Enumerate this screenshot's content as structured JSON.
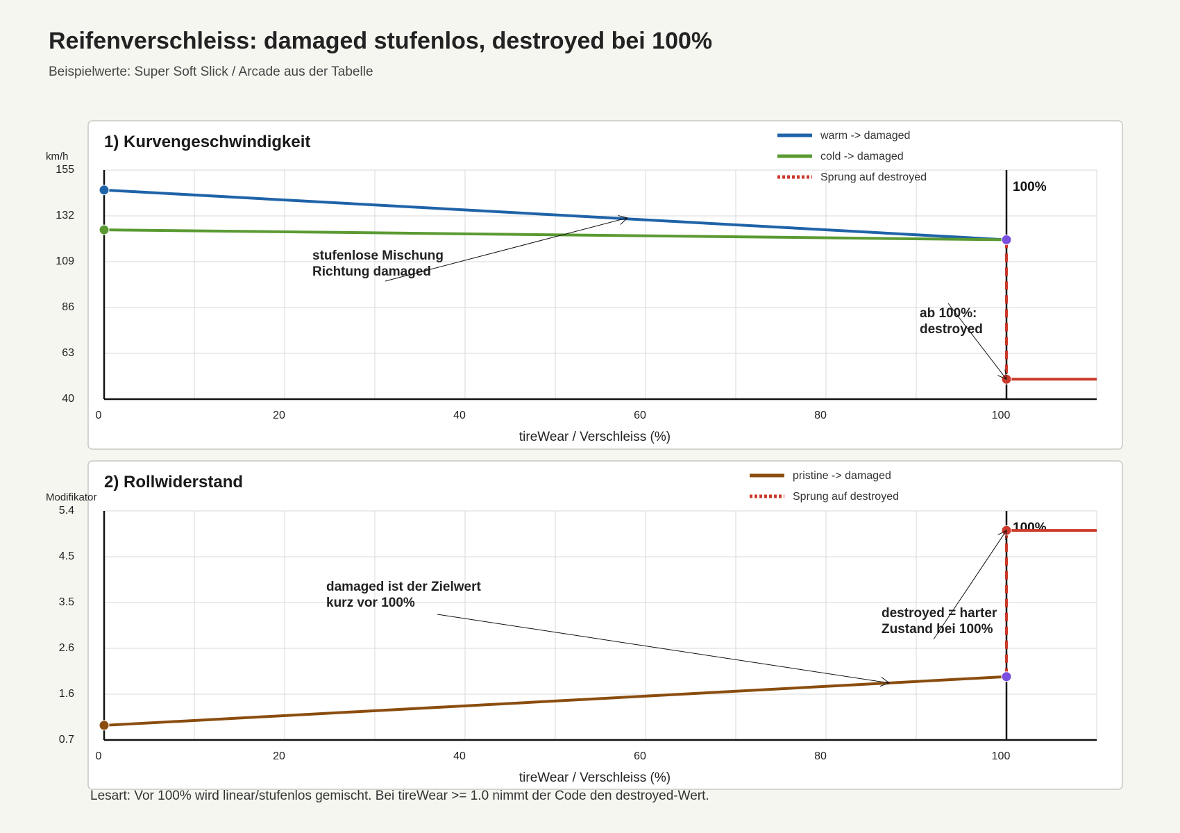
{
  "title": "Reifenverschleiss: damaged stufenlos, destroyed bei 100%",
  "subtitle": "Beispielwerte: Super Soft Slick / Arcade aus der Tabelle",
  "footer": "Lesart: Vor 100% wird linear/stufenlos gemischt. Bei tireWear >= 1.0 nimmt der Code den destroyed-Wert.",
  "colors": {
    "warm": "#1f63a8",
    "cold": "#5a9a32",
    "pristine": "#8a4d0f",
    "destroyed": "#cc3a2b",
    "damaged_point": "#7a4fe0",
    "grid": "#d9d9d9",
    "axis": "#111111"
  },
  "chart_data": [
    {
      "type": "line",
      "title": "1) Kurvengeschwindigkeit",
      "xlabel": "tireWear / Verschleiss (%)",
      "ylabel": "km/h",
      "xlim": [
        0,
        110
      ],
      "ylim": [
        40,
        155
      ],
      "xticks": [
        "0",
        "20",
        "40",
        "60",
        "80",
        "100"
      ],
      "xtick_values": [
        0,
        20,
        40,
        60,
        80,
        100
      ],
      "yticks": [
        "40",
        "63",
        "86",
        "109",
        "132",
        "155"
      ],
      "ytick_values": [
        40,
        63,
        86,
        109,
        132,
        155
      ],
      "series": [
        {
          "name": "warm -> damaged",
          "style": "solid",
          "color": "#1f63a8",
          "x": [
            0,
            100
          ],
          "y": [
            145,
            120
          ]
        },
        {
          "name": "cold -> damaged",
          "style": "solid",
          "color": "#5a9a32",
          "x": [
            0,
            100
          ],
          "y": [
            125,
            120
          ]
        },
        {
          "name": "Sprung auf destroyed",
          "style": "dashed",
          "color": "#cc3a2b",
          "x": [
            100,
            100
          ],
          "y": [
            120,
            50
          ]
        }
      ],
      "destroyed_line": {
        "x": [
          100,
          110
        ],
        "y": [
          50,
          50
        ]
      },
      "points": [
        {
          "x": 0,
          "y": 145,
          "color": "#1f63a8"
        },
        {
          "x": 0,
          "y": 125,
          "color": "#5a9a32"
        },
        {
          "x": 100,
          "y": 120,
          "color": "#7a4fe0"
        },
        {
          "x": 100,
          "y": 50,
          "color": "#cc3a2b"
        }
      ],
      "marker_label": "100%",
      "annotations": [
        {
          "lines": [
            "stufenlose Mischung",
            "Richtung damaged"
          ],
          "target_x": 58,
          "target_y": 131
        },
        {
          "lines": [
            "ab 100%:",
            "destroyed"
          ],
          "target_x": 100,
          "target_y": 50
        }
      ]
    },
    {
      "type": "line",
      "title": "2) Rollwiderstand",
      "xlabel": "tireWear / Verschleiss (%)",
      "ylabel": "Modifikator",
      "xlim": [
        0,
        110
      ],
      "ylim": [
        0.7,
        5.4
      ],
      "xticks": [
        "0",
        "20",
        "40",
        "60",
        "80",
        "100"
      ],
      "xtick_values": [
        0,
        20,
        40,
        60,
        80,
        100
      ],
      "yticks": [
        "0.7",
        "1.6",
        "2.6",
        "3.5",
        "4.5",
        "5.4"
      ],
      "ytick_values": [
        0.7,
        1.64,
        2.58,
        3.52,
        4.46,
        5.4
      ],
      "series": [
        {
          "name": "pristine -> damaged",
          "style": "solid",
          "color": "#8a4d0f",
          "x": [
            0,
            100
          ],
          "y": [
            1.0,
            2.0
          ]
        },
        {
          "name": "Sprung auf destroyed",
          "style": "dashed",
          "color": "#cc3a2b",
          "x": [
            100,
            100
          ],
          "y": [
            2.0,
            5.0
          ]
        }
      ],
      "destroyed_line": {
        "x": [
          100,
          110
        ],
        "y": [
          5.0,
          5.0
        ]
      },
      "points": [
        {
          "x": 0,
          "y": 1.0,
          "color": "#8a4d0f"
        },
        {
          "x": 100,
          "y": 2.0,
          "color": "#7a4fe0"
        },
        {
          "x": 100,
          "y": 5.0,
          "color": "#cc3a2b"
        }
      ],
      "marker_label": "100%",
      "annotations": [
        {
          "lines": [
            "damaged ist der Zielwert",
            "kurz vor 100%"
          ],
          "target_x": 87,
          "target_y": 1.87
        },
        {
          "lines": [
            "destroyed = harter",
            "Zustand bei 100%"
          ],
          "target_x": 100,
          "target_y": 5.0
        }
      ]
    }
  ]
}
